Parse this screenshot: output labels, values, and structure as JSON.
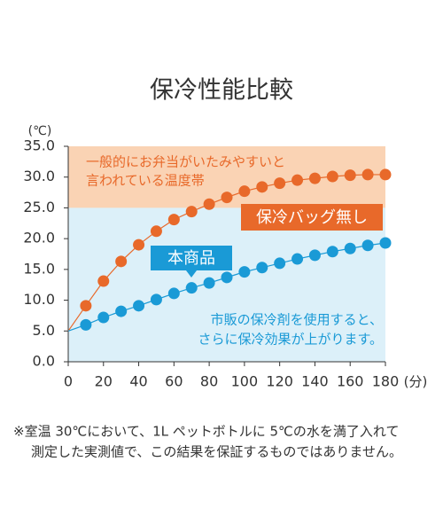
{
  "chart_data": {
    "type": "line",
    "title": "保冷性能比較",
    "y_unit": "(℃)",
    "x_unit": "(分)",
    "x": [
      0,
      10,
      20,
      30,
      40,
      50,
      60,
      70,
      80,
      90,
      100,
      110,
      120,
      130,
      140,
      150,
      160,
      170,
      180
    ],
    "series": [
      {
        "name": "保冷バッグ無し",
        "color": "#e8692a",
        "values": [
          5,
          9.1,
          13.1,
          16.3,
          19.0,
          21.2,
          23.1,
          24.4,
          25.6,
          26.7,
          27.7,
          28.4,
          29.0,
          29.5,
          29.8,
          30.1,
          30.3,
          30.4,
          30.4
        ]
      },
      {
        "name": "本商品",
        "color": "#1a9ad6",
        "values": [
          5,
          6.0,
          7.2,
          8.2,
          9.1,
          10.1,
          11.1,
          12.0,
          12.8,
          13.7,
          14.6,
          15.3,
          16.0,
          16.7,
          17.3,
          17.9,
          18.4,
          18.9,
          19.3
        ]
      }
    ],
    "xlim": [
      0,
      180
    ],
    "ylim": [
      0,
      35
    ],
    "xticks": [
      0,
      20,
      40,
      60,
      80,
      100,
      120,
      140,
      160,
      180
    ],
    "yticks": [
      {
        "value": 0,
        "label": "0.0"
      },
      {
        "value": 5,
        "label": "5.0"
      },
      {
        "value": 10,
        "label": "10.0"
      },
      {
        "value": 15,
        "label": "15.0"
      },
      {
        "value": 20,
        "label": "20.0"
      },
      {
        "value": 25,
        "label": "25.0"
      },
      {
        "value": 30,
        "label": "30.0"
      },
      {
        "value": 35,
        "label": "35.0"
      }
    ],
    "bands": [
      {
        "from": 25,
        "to": 35,
        "color": "#fad3b4",
        "label": [
          "一般的にお弁当がいたみやすいと",
          "言われている温度帯"
        ]
      },
      {
        "from": 0,
        "to": 25,
        "color": "#dcf0f9"
      }
    ],
    "note": [
      "市販の保冷剤を使用すると、",
      "さらに保冷効果が上がります。"
    ],
    "footnote": [
      "※室温 30℃において、1L ペットボトルに 5℃の水を満了入れて",
      "測定した実測値で、この結果を保証するものではありません。"
    ]
  }
}
